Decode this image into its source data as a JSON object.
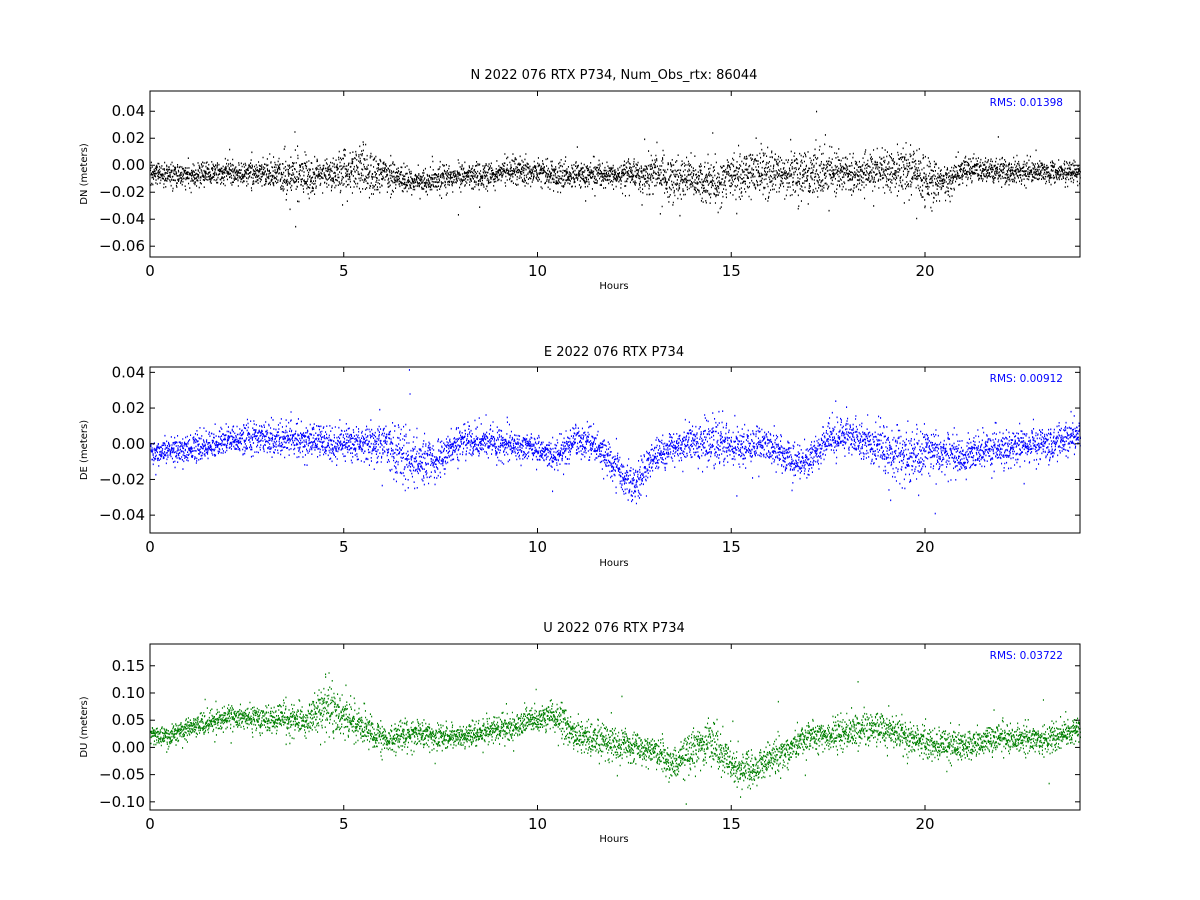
{
  "chart_data": [
    {
      "type": "scatter",
      "component": "N",
      "title": "N 2022 076 RTX  P734, Num_Obs_rtx: 86044",
      "xlabel": "Hours",
      "ylabel": "DN (meters)",
      "xlim": [
        0,
        24
      ],
      "ylim": [
        -0.068,
        0.055
      ],
      "xticks": [
        0,
        5,
        10,
        15,
        20
      ],
      "xtick_labels": [
        "0",
        "5",
        "10",
        "15",
        "20"
      ],
      "yticks": [
        -0.06,
        -0.04,
        -0.02,
        0.0,
        0.02,
        0.04
      ],
      "ytick_labels": [
        "−0.06",
        "−0.04",
        "−0.02",
        "0.00",
        "0.02",
        "0.04"
      ],
      "rms_label": "RMS:  0.01398",
      "color": "#000000",
      "rms_color": "#0000ff",
      "grid": false,
      "num_obs": 86044,
      "trend": {
        "x": [
          0,
          1,
          2,
          3,
          3.5,
          4,
          4.5,
          5,
          5.5,
          6,
          6.5,
          7,
          7.5,
          8,
          9,
          9.5,
          10,
          10.5,
          11,
          12,
          13,
          13.5,
          14,
          14.5,
          15,
          15.5,
          16,
          17,
          17.5,
          18,
          19,
          19.5,
          20,
          20.5,
          21,
          22,
          23,
          24
        ],
        "y": [
          -0.006,
          -0.007,
          -0.005,
          -0.005,
          -0.006,
          -0.008,
          -0.007,
          -0.005,
          -0.004,
          -0.006,
          -0.009,
          -0.012,
          -0.01,
          -0.008,
          -0.006,
          -0.003,
          -0.004,
          -0.008,
          -0.007,
          -0.006,
          -0.007,
          -0.012,
          -0.01,
          -0.013,
          -0.008,
          -0.004,
          -0.006,
          -0.006,
          -0.004,
          -0.006,
          -0.003,
          -0.002,
          -0.01,
          -0.012,
          -0.003,
          -0.004,
          -0.005,
          -0.004
        ]
      },
      "spread": {
        "x": [
          0,
          2,
          3,
          3.5,
          4,
          4.5,
          5,
          5.5,
          6,
          6.5,
          7,
          8,
          9,
          9.5,
          10,
          11,
          12,
          13,
          13.5,
          14,
          14.5,
          15,
          15.5,
          16,
          17,
          17.5,
          18,
          19,
          19.5,
          20,
          20.5,
          21,
          22,
          23,
          24
        ],
        "y": [
          0.0075,
          0.0075,
          0.009,
          0.016,
          0.015,
          0.01,
          0.013,
          0.015,
          0.012,
          0.009,
          0.008,
          0.008,
          0.009,
          0.009,
          0.008,
          0.008,
          0.009,
          0.013,
          0.016,
          0.012,
          0.015,
          0.014,
          0.016,
          0.015,
          0.015,
          0.016,
          0.013,
          0.014,
          0.017,
          0.016,
          0.011,
          0.009,
          0.008,
          0.0075,
          0.007
        ]
      }
    },
    {
      "type": "scatter",
      "component": "E",
      "title": "E 2022 076 RTX  P734",
      "xlabel": "Hours",
      "ylabel": "DE (meters)",
      "xlim": [
        0,
        24
      ],
      "ylim": [
        -0.05,
        0.043
      ],
      "xticks": [
        0,
        5,
        10,
        15,
        20
      ],
      "xtick_labels": [
        "0",
        "5",
        "10",
        "15",
        "20"
      ],
      "yticks": [
        -0.04,
        -0.02,
        0.0,
        0.02,
        0.04
      ],
      "ytick_labels": [
        "−0.04",
        "−0.02",
        "0.00",
        "0.02",
        "0.04"
      ],
      "rms_label": "RMS:  0.00912",
      "color": "#0000ff",
      "rms_color": "#0000ff",
      "grid": false,
      "trend": {
        "x": [
          0,
          1,
          2,
          3,
          4,
          5,
          6,
          6.5,
          7,
          7.5,
          8,
          9,
          10,
          10.5,
          11,
          11.5,
          12,
          12.3,
          12.6,
          13,
          14,
          14.5,
          15,
          16,
          16.5,
          17,
          17.5,
          18,
          19,
          19.5,
          20,
          21,
          22,
          23,
          24
        ],
        "y": [
          -0.004,
          -0.003,
          0.002,
          0.003,
          0.002,
          0.001,
          0.0,
          -0.006,
          -0.01,
          -0.008,
          0.002,
          0.001,
          -0.003,
          -0.006,
          0.003,
          0.0,
          -0.012,
          -0.022,
          -0.02,
          -0.006,
          0.002,
          0.001,
          0.0,
          -0.002,
          -0.008,
          -0.01,
          0.003,
          0.004,
          -0.002,
          -0.008,
          -0.003,
          -0.006,
          -0.002,
          0.0,
          0.006
        ]
      },
      "spread": {
        "x": [
          0,
          2,
          3,
          5,
          6,
          6.5,
          7,
          8,
          9,
          10,
          11,
          12,
          13,
          14,
          14.5,
          15,
          16,
          17,
          18,
          19,
          19.5,
          20,
          21,
          22,
          23,
          24
        ],
        "y": [
          0.006,
          0.007,
          0.009,
          0.008,
          0.01,
          0.016,
          0.012,
          0.008,
          0.008,
          0.007,
          0.008,
          0.01,
          0.008,
          0.008,
          0.013,
          0.01,
          0.009,
          0.009,
          0.009,
          0.011,
          0.015,
          0.011,
          0.01,
          0.009,
          0.008,
          0.008
        ]
      }
    },
    {
      "type": "scatter",
      "component": "U",
      "title": "U 2022 076 RTX  P734",
      "xlabel": "Hours",
      "ylabel": "DU (meters)",
      "xlim": [
        0,
        24
      ],
      "ylim": [
        -0.115,
        0.19
      ],
      "xticks": [
        0,
        5,
        10,
        15,
        20
      ],
      "xtick_labels": [
        "0",
        "5",
        "10",
        "15",
        "20"
      ],
      "yticks": [
        -0.1,
        -0.05,
        0.0,
        0.05,
        0.1,
        0.15
      ],
      "ytick_labels": [
        "−0.10",
        "−0.05",
        "0.00",
        "0.05",
        "0.10",
        "0.15"
      ],
      "rms_label": "RMS:  0.03722",
      "color": "#008000",
      "rms_color": "#0000ff",
      "grid": false,
      "trend": {
        "x": [
          0,
          0.5,
          1,
          2,
          3,
          4,
          4.5,
          5,
          5.5,
          6,
          7,
          8,
          9,
          10,
          10.5,
          11,
          12,
          13,
          13.5,
          14,
          14.5,
          15,
          15.5,
          16,
          17,
          18,
          18.5,
          19,
          20,
          21,
          22,
          23,
          24
        ],
        "y": [
          0.025,
          0.02,
          0.04,
          0.055,
          0.055,
          0.05,
          0.075,
          0.06,
          0.035,
          0.02,
          0.025,
          0.02,
          0.035,
          0.055,
          0.06,
          0.02,
          0.01,
          -0.005,
          -0.03,
          0.0,
          0.01,
          -0.03,
          -0.04,
          -0.02,
          0.02,
          0.03,
          0.04,
          0.03,
          0.01,
          0.005,
          0.02,
          0.015,
          0.035
        ]
      },
      "spread": {
        "x": [
          0,
          2,
          4,
          4.5,
          5,
          6,
          8,
          10,
          11,
          13,
          14,
          14.5,
          15,
          16,
          18,
          20,
          22,
          24
        ],
        "y": [
          0.015,
          0.02,
          0.025,
          0.04,
          0.035,
          0.025,
          0.02,
          0.022,
          0.028,
          0.025,
          0.03,
          0.035,
          0.03,
          0.028,
          0.028,
          0.025,
          0.025,
          0.02
        ]
      }
    }
  ]
}
